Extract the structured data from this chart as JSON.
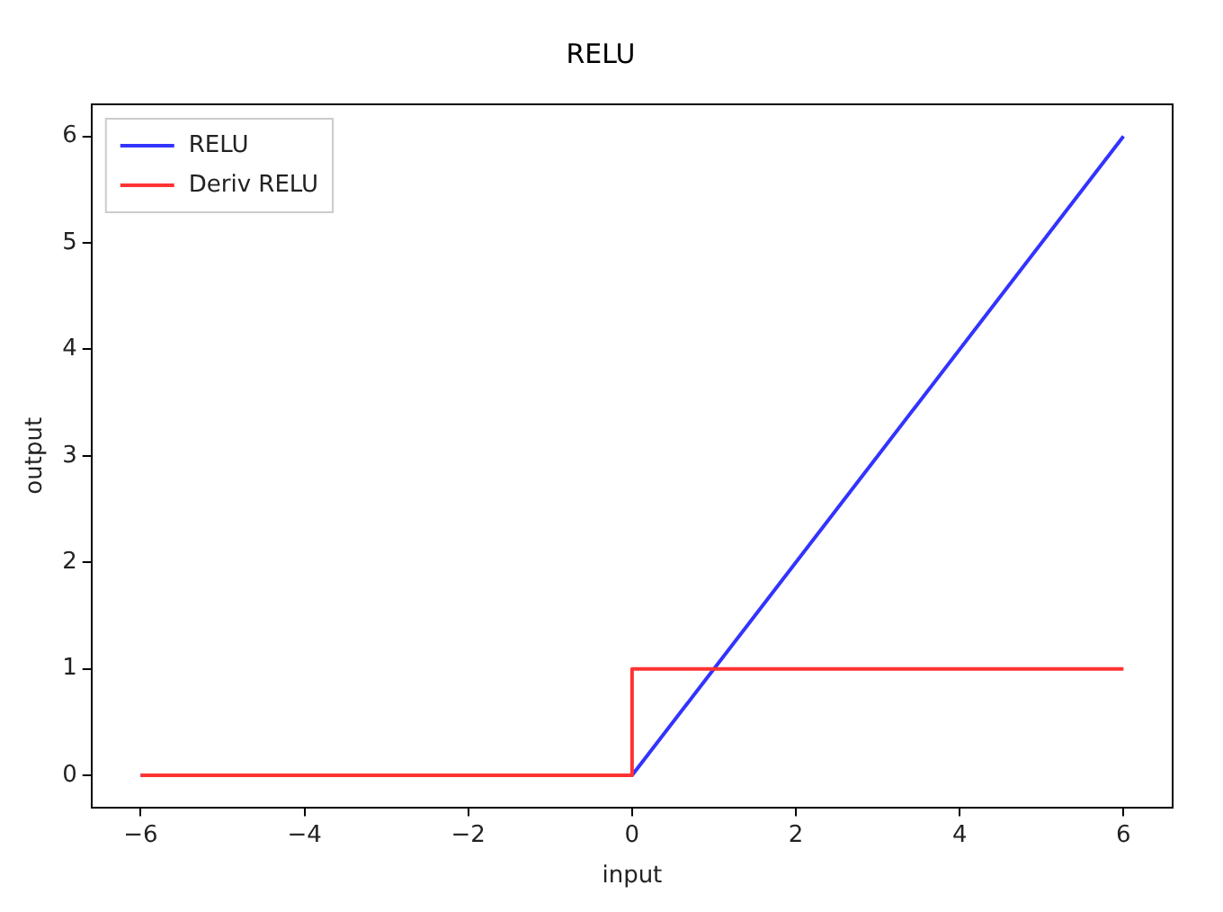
{
  "chart_data": {
    "type": "line",
    "title": "RELU",
    "xlabel": "input",
    "ylabel": "output",
    "xlim": [
      -6.6,
      6.6
    ],
    "ylim": [
      -0.3,
      6.3
    ],
    "xticks": [
      {
        "value": -6,
        "label": "−6"
      },
      {
        "value": -4,
        "label": "−4"
      },
      {
        "value": -2,
        "label": "−2"
      },
      0,
      2,
      4,
      6
    ],
    "yticks": [
      0,
      1,
      2,
      3,
      4,
      5,
      6
    ],
    "series": [
      {
        "name": "RELU",
        "color": "#3333ff",
        "x": [
          -6,
          0,
          6
        ],
        "values": [
          0,
          0,
          6
        ]
      },
      {
        "name": "Deriv RELU",
        "color": "#ff3333",
        "x": [
          -6,
          0,
          0,
          6
        ],
        "values": [
          0,
          0,
          1,
          1
        ]
      }
    ],
    "grid": false,
    "legend": "top left"
  }
}
